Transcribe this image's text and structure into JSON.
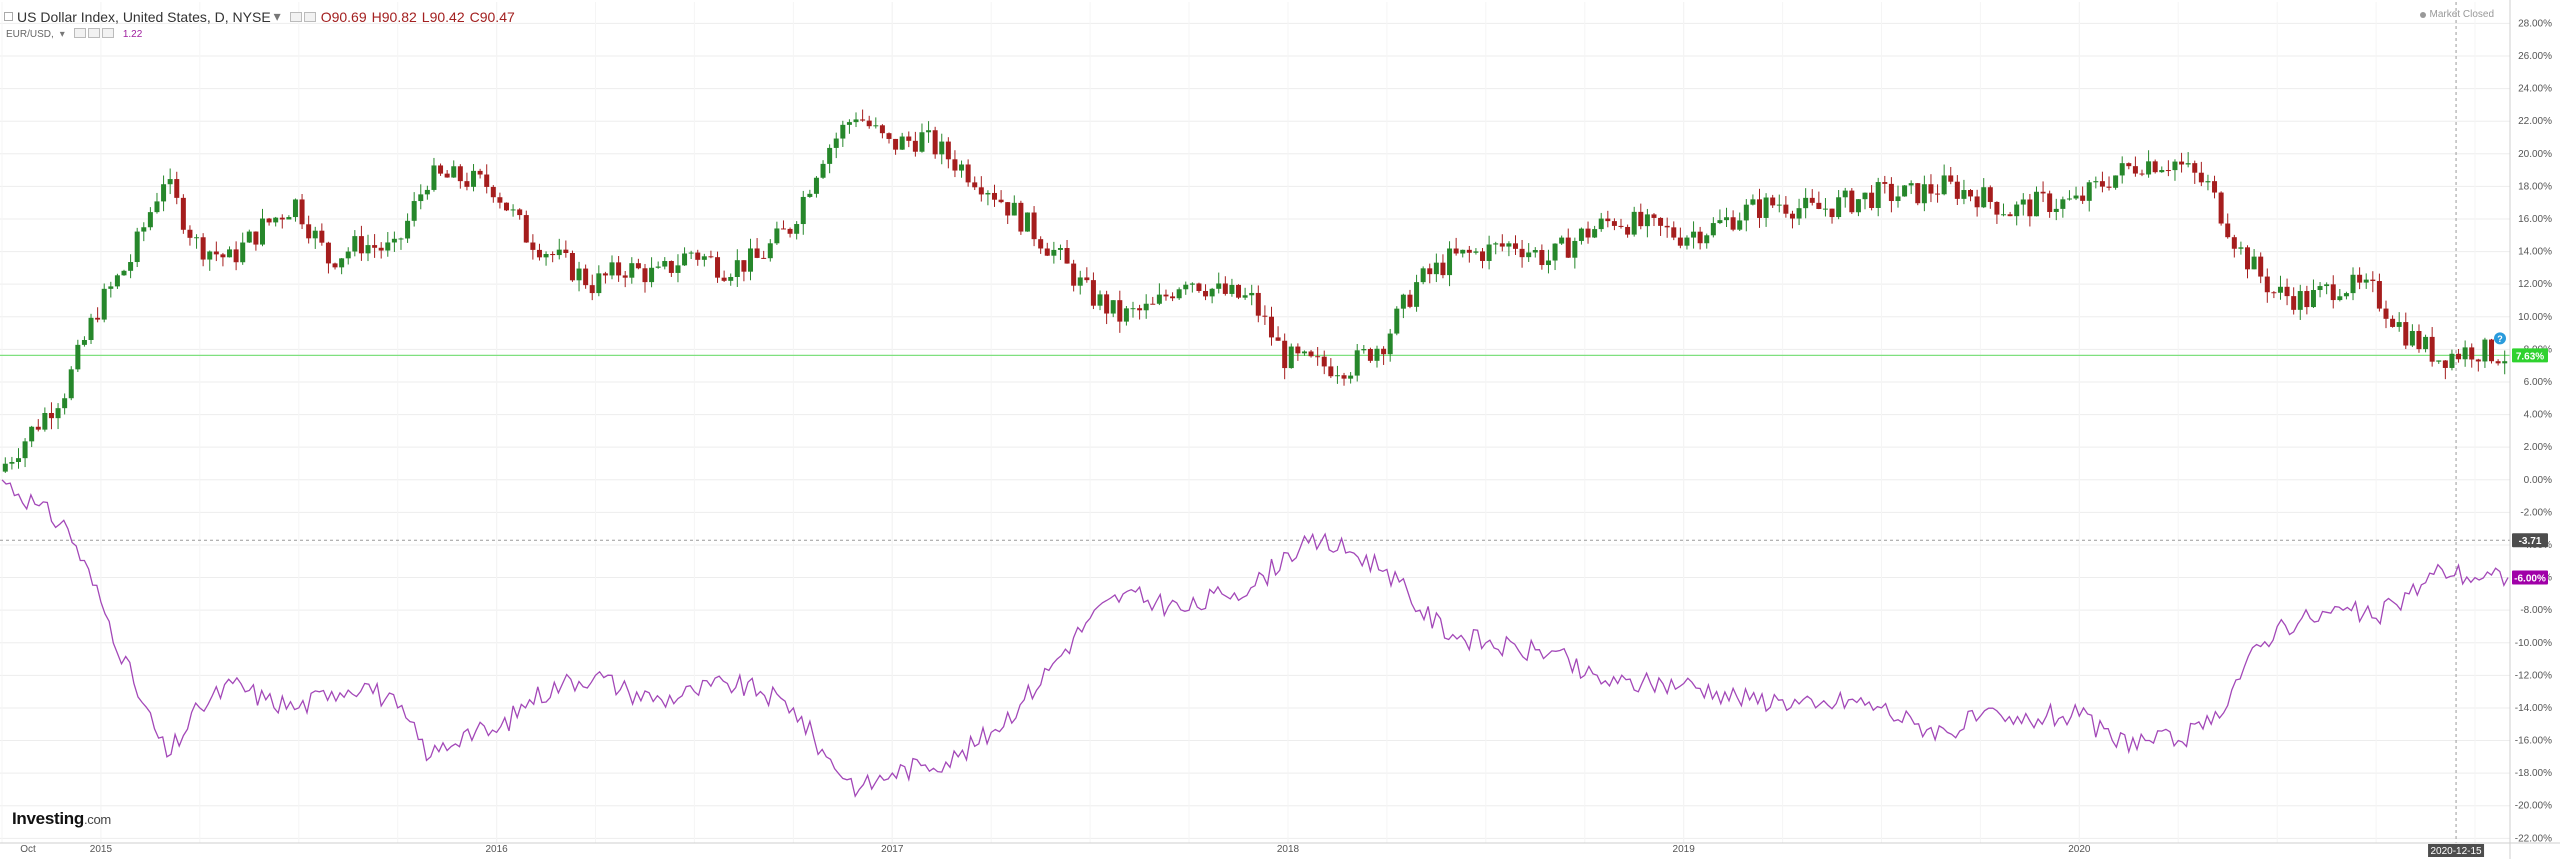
{
  "header": {
    "symbol_title": "US Dollar Index, United States, D, NYSE",
    "dropdown_glyph": "▾",
    "ohlc": {
      "open": "O90.69",
      "high": "H90.82",
      "low": "L90.42",
      "close": "C90.47"
    },
    "compare_symbol": "EUR/USD,",
    "compare_value": "1.22",
    "market_status": "Market Closed"
  },
  "branding": {
    "logo_main": "Investing",
    "logo_suffix": ".com"
  },
  "colors": {
    "candle_up": "#26872b",
    "candle_down": "#a51d1d",
    "compare_line": "#a348b8",
    "horizontal_level_line": "#7fe07f",
    "last_price_badge": "#2fd22f",
    "compare_badge": "#a000a8",
    "crosshair_badge": "#4d4d4d",
    "grid": "#ededed"
  },
  "price_badges": {
    "dxy_last": "7.63%",
    "crosshair_value": "-3.71",
    "eurusd_last": "-6.00%",
    "crosshair_date": "2020-12-15"
  },
  "icons": {
    "alert_marker": "?"
  },
  "chart_data": {
    "type": "line",
    "y_unit": "%",
    "ylim": [
      -22,
      28
    ],
    "grid": true,
    "y_ticks": [
      "28.00%",
      "26.00%",
      "24.00%",
      "22.00%",
      "20.00%",
      "18.00%",
      "16.00%",
      "14.00%",
      "12.00%",
      "10.00%",
      "8.00%",
      "6.00%",
      "4.00%",
      "2.00%",
      "0.00%",
      "-2.00%",
      "-4.00%",
      "-6.00%",
      "-8.00%",
      "-10.00%",
      "-12.00%",
      "-14.00%",
      "-16.00%",
      "-18.00%",
      "-20.00%",
      "-22.00%"
    ],
    "x_ticks": [
      "Oct",
      "2015",
      "2016",
      "2017",
      "2018",
      "2019",
      "2020"
    ],
    "x_range": [
      "2014-10",
      "2021-02"
    ],
    "reference_line_value": 7.63,
    "series": [
      {
        "name": "US Dollar Index",
        "style": "candlestick",
        "x": [
          "2014-10",
          "2014-11",
          "2014-12",
          "2015-01",
          "2015-02",
          "2015-03",
          "2015-04",
          "2015-05",
          "2015-06",
          "2015-07",
          "2015-08",
          "2015-09",
          "2015-10",
          "2015-11",
          "2015-12",
          "2016-01",
          "2016-02",
          "2016-03",
          "2016-04",
          "2016-05",
          "2016-06",
          "2016-07",
          "2016-08",
          "2016-09",
          "2016-10",
          "2016-11",
          "2016-12",
          "2017-01",
          "2017-02",
          "2017-03",
          "2017-04",
          "2017-05",
          "2017-06",
          "2017-07",
          "2017-08",
          "2017-09",
          "2017-10",
          "2017-11",
          "2017-12",
          "2018-01",
          "2018-02",
          "2018-03",
          "2018-04",
          "2018-05",
          "2018-06",
          "2018-07",
          "2018-08",
          "2018-09",
          "2018-10",
          "2018-11",
          "2018-12",
          "2019-01",
          "2019-02",
          "2019-03",
          "2019-04",
          "2019-05",
          "2019-06",
          "2019-07",
          "2019-08",
          "2019-09",
          "2019-10",
          "2019-11",
          "2019-12",
          "2020-01",
          "2020-02",
          "2020-03",
          "2020-04",
          "2020-05",
          "2020-06",
          "2020-07",
          "2020-08",
          "2020-09",
          "2020-10",
          "2020-11",
          "2020-12",
          "2021-01",
          "2021-02"
        ],
        "values": [
          0.5,
          3.0,
          5.5,
          10.5,
          13.5,
          18.5,
          14.5,
          13.5,
          15.5,
          17.0,
          13.5,
          14.5,
          14.0,
          18.5,
          18.5,
          18.0,
          15.0,
          13.5,
          12.0,
          13.0,
          12.5,
          14.0,
          13.0,
          13.5,
          15.5,
          20.0,
          22.5,
          20.5,
          21.0,
          19.5,
          18.0,
          16.0,
          14.0,
          11.5,
          10.0,
          10.5,
          12.5,
          11.5,
          11.0,
          7.5,
          7.0,
          7.0,
          8.5,
          12.0,
          13.5,
          14.0,
          14.5,
          13.5,
          15.0,
          16.0,
          15.5,
          15.0,
          15.5,
          16.5,
          17.0,
          16.5,
          17.0,
          17.5,
          17.5,
          18.0,
          17.5,
          16.5,
          17.0,
          17.0,
          18.5,
          19.5,
          19.5,
          18.0,
          14.0,
          11.5,
          11.0,
          12.0,
          11.5,
          9.0,
          7.5,
          8.0,
          7.63
        ]
      },
      {
        "name": "EUR/USD",
        "style": "line",
        "x": [
          "2014-10",
          "2014-11",
          "2014-12",
          "2015-01",
          "2015-02",
          "2015-03",
          "2015-04",
          "2015-05",
          "2015-06",
          "2015-07",
          "2015-08",
          "2015-09",
          "2015-10",
          "2015-11",
          "2015-12",
          "2016-01",
          "2016-02",
          "2016-03",
          "2016-04",
          "2016-05",
          "2016-06",
          "2016-07",
          "2016-08",
          "2016-09",
          "2016-10",
          "2016-11",
          "2016-12",
          "2017-01",
          "2017-02",
          "2017-03",
          "2017-04",
          "2017-05",
          "2017-06",
          "2017-07",
          "2017-08",
          "2017-09",
          "2017-10",
          "2017-11",
          "2017-12",
          "2018-01",
          "2018-02",
          "2018-03",
          "2018-04",
          "2018-05",
          "2018-06",
          "2018-07",
          "2018-08",
          "2018-09",
          "2018-10",
          "2018-11",
          "2018-12",
          "2019-01",
          "2019-02",
          "2019-03",
          "2019-04",
          "2019-05",
          "2019-06",
          "2019-07",
          "2019-08",
          "2019-09",
          "2019-10",
          "2019-11",
          "2019-12",
          "2020-01",
          "2020-02",
          "2020-03",
          "2020-04",
          "2020-05",
          "2020-06",
          "2020-07",
          "2020-08",
          "2020-09",
          "2020-10",
          "2020-11",
          "2020-12",
          "2021-01",
          "2021-02"
        ],
        "values": [
          0.0,
          -1.5,
          -3.0,
          -7.5,
          -12.5,
          -17.0,
          -14.0,
          -12.5,
          -13.5,
          -14.0,
          -13.0,
          -12.5,
          -14.0,
          -17.0,
          -15.5,
          -15.5,
          -13.5,
          -12.5,
          -12.0,
          -13.0,
          -13.5,
          -13.0,
          -12.5,
          -13.0,
          -14.0,
          -17.0,
          -19.0,
          -18.0,
          -17.5,
          -17.0,
          -15.5,
          -13.5,
          -11.0,
          -8.5,
          -7.0,
          -7.5,
          -8.0,
          -7.0,
          -6.5,
          -4.5,
          -3.8,
          -4.5,
          -5.5,
          -8.0,
          -9.5,
          -10.0,
          -10.5,
          -10.5,
          -12.0,
          -12.5,
          -12.5,
          -12.5,
          -13.0,
          -13.5,
          -13.5,
          -14.0,
          -13.5,
          -14.0,
          -15.0,
          -15.5,
          -14.5,
          -15.0,
          -14.5,
          -14.5,
          -16.0,
          -16.0,
          -16.0,
          -15.0,
          -11.5,
          -9.0,
          -8.5,
          -8.0,
          -8.5,
          -7.0,
          -5.5,
          -6.0,
          -6.0
        ]
      }
    ]
  }
}
